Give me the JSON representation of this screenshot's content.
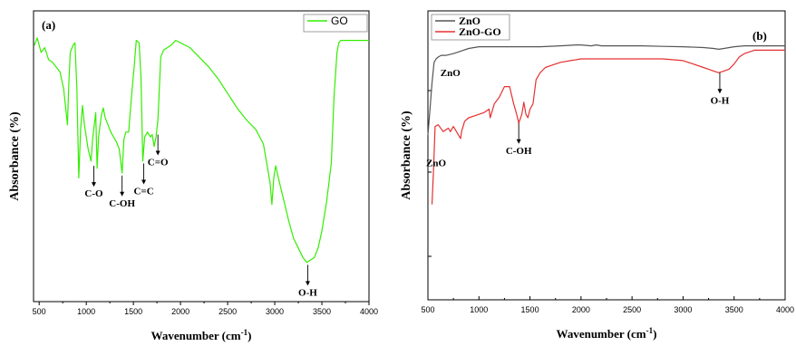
{
  "chart_data": [
    {
      "type": "line",
      "panel_label": "(a)",
      "xlabel": "Wavenumber (cm",
      "xlabel_sup": "-1",
      "xlabel_close": ")",
      "ylabel": "Absorbance (%)",
      "xlim": [
        450,
        4000
      ],
      "xticks": [
        "500",
        "1000",
        "1500",
        "2000",
        "2500",
        "3000",
        "3500",
        "4000"
      ],
      "y_tick_labels": false,
      "legend": {
        "position": "top-right",
        "entries": [
          "GO"
        ]
      },
      "grid": false,
      "series": [
        {
          "name": "GO",
          "color": "#33ee00",
          "x": [
            450,
            480,
            520,
            560,
            600,
            640,
            680,
            720,
            760,
            800,
            815,
            830,
            860,
            880,
            900,
            920,
            940,
            960,
            980,
            1000,
            1020,
            1050,
            1070,
            1100,
            1115,
            1130,
            1160,
            1180,
            1200,
            1230,
            1260,
            1290,
            1320,
            1350,
            1380,
            1400,
            1420,
            1450,
            1480,
            1510,
            1530,
            1560,
            1580,
            1600,
            1620,
            1650,
            1680,
            1700,
            1720,
            1740,
            1760,
            1790,
            1820,
            1860,
            1900,
            1950,
            2000,
            2050,
            2100,
            2150,
            2200,
            2300,
            2400,
            2500,
            2600,
            2700,
            2800,
            2880,
            2920,
            2950,
            2970,
            2990,
            3010,
            3050,
            3100,
            3150,
            3200,
            3250,
            3300,
            3340,
            3380,
            3420,
            3460,
            3500,
            3550,
            3600,
            3630,
            3660,
            3680,
            3700,
            3720,
            3750,
            3800,
            3850,
            3900,
            4000
          ],
          "y": [
            93,
            96,
            90,
            92,
            87,
            86,
            84,
            82,
            75,
            60,
            77,
            90,
            93,
            94,
            75,
            38,
            58,
            68,
            60,
            55,
            50,
            45,
            55,
            65,
            42,
            55,
            64,
            67,
            63,
            60,
            57,
            55,
            53,
            50,
            40,
            54,
            57,
            57,
            72,
            85,
            95,
            94,
            80,
            45,
            55,
            57,
            55,
            56,
            51,
            55,
            62,
            88,
            91,
            92,
            93,
            95,
            94,
            93,
            92,
            90,
            88,
            84,
            79,
            73,
            67,
            62,
            58,
            52,
            43,
            36,
            27,
            38,
            43,
            36,
            28,
            20,
            13,
            9,
            5,
            3,
            4,
            5,
            9,
            16,
            28,
            44,
            72,
            90,
            94,
            95,
            95,
            95,
            95,
            95,
            95,
            95
          ]
        }
      ],
      "annotations": [
        {
          "text": "C-O",
          "x": 1080,
          "level": 43
        },
        {
          "text": "C-OH",
          "x": 1380,
          "level": 39
        },
        {
          "text": "C=C",
          "x": 1610,
          "level": 44
        },
        {
          "text": "C=O",
          "x": 1760,
          "level": 56
        },
        {
          "text": "O-H",
          "x": 3350,
          "level": 2
        }
      ]
    },
    {
      "type": "line",
      "panel_label": "(b)",
      "xlabel": "Wavenumber (cm",
      "xlabel_sup": "-1",
      "xlabel_close": ")",
      "ylabel": "Absorbance (%)",
      "xlim": [
        500,
        4000
      ],
      "xticks": [
        "500",
        "1000",
        "1500",
        "2000",
        "2500",
        "3000",
        "3500",
        "4000"
      ],
      "y_tick_labels": false,
      "legend": {
        "position": "top-left",
        "entries": [
          "ZnO",
          "ZnO-GO"
        ]
      },
      "grid": false,
      "series": [
        {
          "name": "ZnO",
          "color": "#555555",
          "x": [
            500,
            520,
            540,
            560,
            580,
            600,
            630,
            680,
            750,
            800,
            900,
            1000,
            1200,
            1400,
            1600,
            1800,
            1950,
            2000,
            2100,
            2150,
            2200,
            2400,
            2600,
            2800,
            3000,
            3200,
            3300,
            3350,
            3400,
            3500,
            3600,
            3700,
            3800,
            4000
          ],
          "y": [
            40,
            55,
            70,
            82,
            84,
            85,
            86,
            86,
            87,
            88,
            90,
            91,
            91,
            91,
            91,
            91.5,
            92,
            92,
            91.5,
            92,
            91.5,
            91.5,
            91.5,
            91.2,
            91,
            90.5,
            90,
            89.5,
            90,
            91,
            91.5,
            91.5,
            91.5,
            91.5
          ]
        },
        {
          "name": "ZnO-GO",
          "color": "#e53030",
          "x": [
            540,
            555,
            570,
            600,
            650,
            700,
            720,
            750,
            800,
            820,
            830,
            860,
            900,
            1000,
            1050,
            1100,
            1110,
            1150,
            1200,
            1250,
            1300,
            1340,
            1370,
            1390,
            1420,
            1440,
            1460,
            1480,
            1500,
            1530,
            1560,
            1600,
            1650,
            1700,
            1800,
            1900,
            2000,
            2100,
            2200,
            2300,
            2400,
            2500,
            2600,
            2800,
            3000,
            3100,
            3200,
            3250,
            3300,
            3350,
            3400,
            3450,
            3500,
            3550,
            3600,
            3650,
            3700,
            3800,
            3900,
            4000
          ],
          "y": [
            0,
            20,
            45,
            46,
            42,
            44,
            42,
            45,
            40,
            38,
            42,
            48,
            50,
            52,
            53,
            55,
            50,
            58,
            62,
            68,
            68,
            58,
            52,
            47,
            52,
            59,
            52,
            50,
            55,
            58,
            72,
            76,
            79,
            80,
            82,
            83,
            84,
            84,
            84,
            84,
            84,
            84,
            84,
            84,
            83,
            81,
            79,
            78,
            77,
            76,
            77,
            78,
            81,
            85,
            87,
            88,
            89,
            89,
            89,
            89
          ]
        }
      ],
      "annotations": [
        {
          "text": "ZnO",
          "x": 720,
          "level": 74
        },
        {
          "text": "ZnO",
          "x": 580,
          "level": 22
        },
        {
          "text": "C-OH",
          "x": 1390,
          "level": 47
        },
        {
          "text": "O-H",
          "x": 3360,
          "level": 76
        }
      ]
    }
  ]
}
